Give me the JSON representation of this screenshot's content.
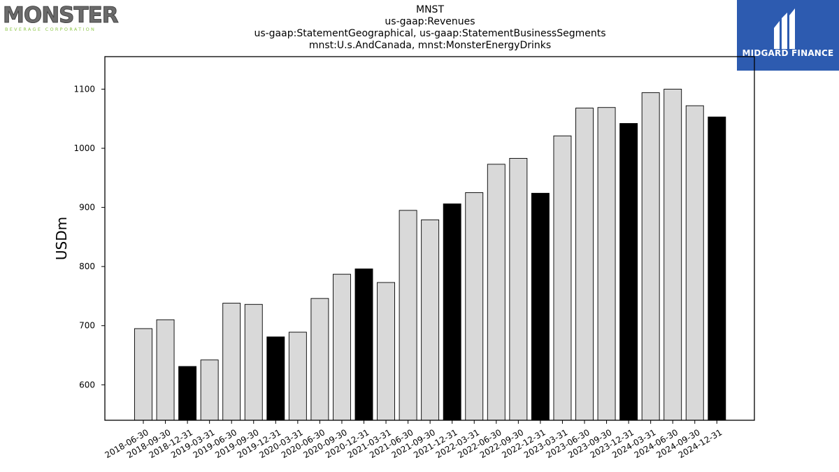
{
  "header": {
    "title_lines": [
      "MNST",
      "us-gaap:Revenues",
      "us-gaap:StatementGeographical, us-gaap:StatementBusinessSegments",
      "mnst:U.s.AndCanada, mnst:MonsterEnergyDrinks"
    ]
  },
  "logos": {
    "left_brand": "MONSTER",
    "left_tagline": "BEVERAGE CORPORATION",
    "right_brand": "MIDGARD FINANCE"
  },
  "colors": {
    "bar_regular": "#d9d9d9",
    "bar_q4": "#000000",
    "logo_right_bg": "#2d5bb0"
  },
  "chart_data": {
    "type": "bar",
    "ylabel": "USDm",
    "xlabel": "",
    "ylim": [
      540,
      1155
    ],
    "yticks": [
      600,
      700,
      800,
      900,
      1000,
      1100
    ],
    "grid": false,
    "categories": [
      "2018-06-30",
      "2018-09-30",
      "2018-12-31",
      "2019-03-31",
      "2019-06-30",
      "2019-09-30",
      "2019-12-31",
      "2020-03-31",
      "2020-06-30",
      "2020-09-30",
      "2020-12-31",
      "2021-03-31",
      "2021-06-30",
      "2021-09-30",
      "2021-12-31",
      "2022-03-31",
      "2022-06-30",
      "2022-09-30",
      "2022-12-31",
      "2023-03-31",
      "2023-06-30",
      "2023-09-30",
      "2023-12-31",
      "2024-03-31",
      "2024-06-30",
      "2024-09-30",
      "2024-12-31"
    ],
    "values": [
      695,
      710,
      631,
      642,
      738,
      736,
      681,
      689,
      746,
      787,
      796,
      773,
      895,
      879,
      906,
      925,
      973,
      983,
      924,
      1021,
      1068,
      1069,
      1042,
      1094,
      1100,
      1072,
      1053
    ],
    "highlight_dates_ending": "12-31"
  }
}
